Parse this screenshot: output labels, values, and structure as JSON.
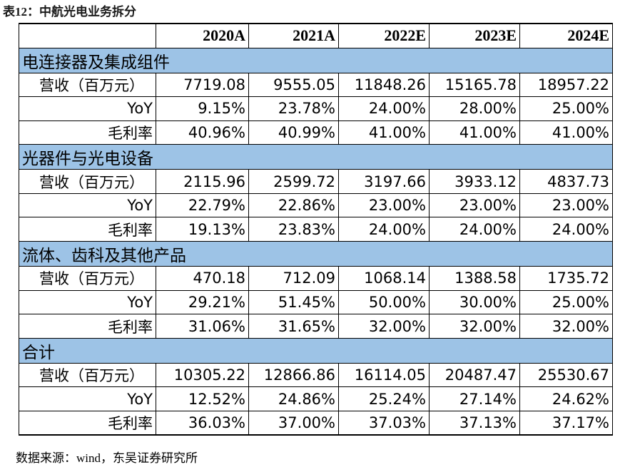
{
  "header": {
    "title": "表12：中航光电业务拆分"
  },
  "table": {
    "columns": [
      "2020A",
      "2021A",
      "2022E",
      "2023E",
      "2024E"
    ],
    "sections": [
      {
        "name": "电连接器及集成组件",
        "rows": [
          {
            "label": "营收（百万元）",
            "values": [
              "7719.08",
              "9555.05",
              "11848.26",
              "15165.78",
              "18957.22"
            ]
          },
          {
            "label": "YoY",
            "values": [
              "9.15%",
              "23.78%",
              "24.00%",
              "28.00%",
              "25.00%"
            ]
          },
          {
            "label": "毛利率",
            "values": [
              "40.96%",
              "40.99%",
              "41.00%",
              "41.00%",
              "41.00%"
            ]
          }
        ]
      },
      {
        "name": "光器件与光电设备",
        "rows": [
          {
            "label": "营收（百万元）",
            "values": [
              "2115.96",
              "2599.72",
              "3197.66",
              "3933.12",
              "4837.73"
            ]
          },
          {
            "label": "YoY",
            "values": [
              "22.79%",
              "22.86%",
              "23.00%",
              "23.00%",
              "23.00%"
            ]
          },
          {
            "label": "毛利率",
            "values": [
              "19.13%",
              "23.83%",
              "24.00%",
              "24.00%",
              "24.00%"
            ]
          }
        ]
      },
      {
        "name": "流体、齿科及其他产品",
        "rows": [
          {
            "label": "营收（百万元）",
            "values": [
              "470.18",
              "712.09",
              "1068.14",
              "1388.58",
              "1735.72"
            ]
          },
          {
            "label": "YoY",
            "values": [
              "29.21%",
              "51.45%",
              "50.00%",
              "30.00%",
              "25.00%"
            ]
          },
          {
            "label": "毛利率",
            "values": [
              "31.06%",
              "31.65%",
              "32.00%",
              "32.00%",
              "32.00%"
            ]
          }
        ]
      },
      {
        "name": "合计",
        "rows": [
          {
            "label": "营收（百万元）",
            "values": [
              "10305.22",
              "12866.86",
              "16114.05",
              "20487.47",
              "25530.67"
            ]
          },
          {
            "label": "YoY",
            "values": [
              "12.52%",
              "24.86%",
              "25.24%",
              "27.14%",
              "24.62%"
            ]
          },
          {
            "label": "毛利率",
            "values": [
              "36.03%",
              "37.00%",
              "37.03%",
              "37.13%",
              "37.17%"
            ]
          }
        ]
      }
    ]
  },
  "footer": {
    "source": "数据来源：wind，东吴证券研究所"
  }
}
